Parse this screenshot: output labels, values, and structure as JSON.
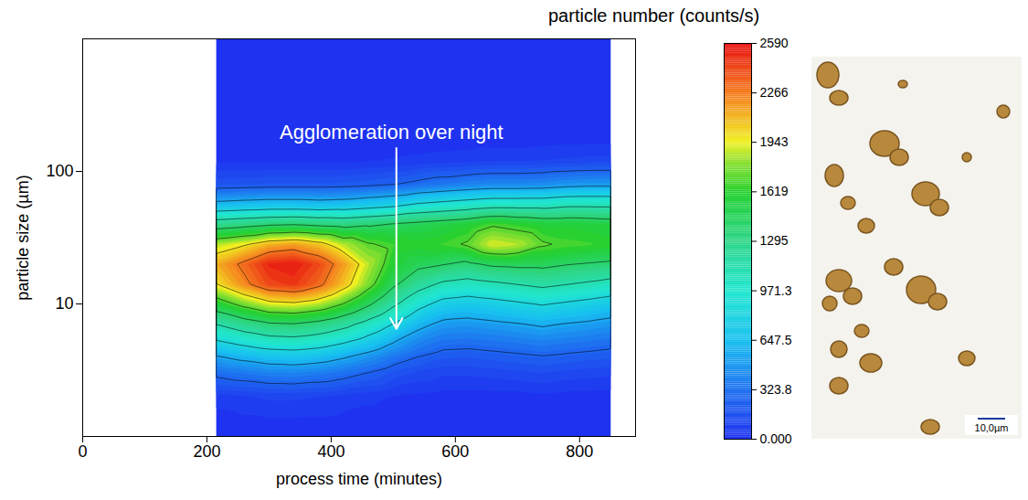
{
  "chart_data": {
    "type": "contour",
    "xlabel": "process time (minutes)",
    "ylabel": "particle size (µm)",
    "xlim": [
      0,
      890
    ],
    "xticks": [
      0,
      200,
      400,
      600,
      800
    ],
    "ylim": [
      1,
      1000
    ],
    "yticks": [
      10,
      100
    ],
    "log": "y",
    "x": [
      215,
      260,
      300,
      340,
      380,
      420,
      460,
      500,
      540,
      580,
      620,
      660,
      700,
      740,
      780,
      820,
      850
    ],
    "y": [
      1,
      2,
      3,
      4,
      5,
      7,
      10,
      14,
      20,
      28,
      40,
      56,
      80,
      120,
      200,
      1000
    ],
    "values": [
      [
        0,
        0,
        0,
        0,
        0,
        0,
        0,
        0,
        0,
        0,
        0,
        0,
        0,
        0,
        0,
        0,
        0
      ],
      [
        80,
        100,
        120,
        120,
        110,
        90,
        70,
        50,
        40,
        30,
        30,
        30,
        30,
        40,
        30,
        30,
        30
      ],
      [
        330,
        380,
        420,
        430,
        400,
        350,
        280,
        200,
        150,
        120,
        120,
        130,
        140,
        160,
        140,
        130,
        120
      ],
      [
        560,
        640,
        700,
        720,
        680,
        600,
        500,
        380,
        290,
        230,
        220,
        240,
        260,
        280,
        260,
        240,
        230
      ],
      [
        800,
        900,
        980,
        1000,
        950,
        850,
        720,
        560,
        420,
        340,
        330,
        350,
        370,
        400,
        370,
        350,
        330
      ],
      [
        1150,
        1300,
        1400,
        1420,
        1350,
        1230,
        1050,
        850,
        640,
        520,
        500,
        530,
        560,
        600,
        560,
        530,
        500
      ],
      [
        1600,
        1800,
        1950,
        1980,
        1900,
        1720,
        1480,
        1200,
        950,
        780,
        740,
        780,
        830,
        880,
        830,
        780,
        740
      ],
      [
        2000,
        2250,
        2450,
        2500,
        2350,
        2100,
        1800,
        1480,
        1250,
        1100,
        1050,
        1100,
        1150,
        1200,
        1150,
        1100,
        1050
      ],
      [
        2150,
        2350,
        2550,
        2590,
        2450,
        2200,
        1900,
        1620,
        1500,
        1450,
        1400,
        1480,
        1500,
        1500,
        1450,
        1420,
        1400
      ],
      [
        1900,
        2000,
        2150,
        2200,
        2100,
        1900,
        1750,
        1680,
        1650,
        1680,
        1750,
        1950,
        1900,
        1750,
        1700,
        1680,
        1650
      ],
      [
        1300,
        1350,
        1400,
        1420,
        1380,
        1350,
        1400,
        1450,
        1500,
        1550,
        1600,
        1700,
        1650,
        1600,
        1600,
        1580,
        1560
      ],
      [
        650,
        680,
        700,
        700,
        680,
        700,
        750,
        800,
        900,
        950,
        1000,
        1050,
        1050,
        1050,
        1100,
        1100,
        1100
      ],
      [
        200,
        210,
        220,
        220,
        220,
        230,
        250,
        280,
        330,
        380,
        420,
        450,
        450,
        460,
        500,
        520,
        520
      ],
      [
        40,
        40,
        40,
        40,
        40,
        40,
        50,
        60,
        70,
        80,
        90,
        100,
        100,
        110,
        120,
        130,
        130
      ],
      [
        0,
        0,
        0,
        0,
        0,
        0,
        0,
        0,
        0,
        0,
        0,
        0,
        0,
        0,
        0,
        0,
        0
      ],
      [
        0,
        0,
        0,
        0,
        0,
        0,
        0,
        0,
        0,
        0,
        0,
        0,
        0,
        0,
        0,
        0,
        0
      ]
    ],
    "colorbar": {
      "title": "particle number (counts/s)",
      "range": [
        0,
        2590
      ],
      "ticks": [
        {
          "value": 0,
          "label": "0.000"
        },
        323.8,
        647.5,
        971.3,
        1295,
        1619,
        1943,
        2266,
        2590
      ]
    },
    "annotations": [
      {
        "text": "Agglomeration over night",
        "x": 497,
        "y": 195,
        "arrow": {
          "x": 505,
          "y1": 150,
          "y2": 6.5
        }
      }
    ]
  },
  "image": {
    "scale_bar": "10,0µm"
  }
}
